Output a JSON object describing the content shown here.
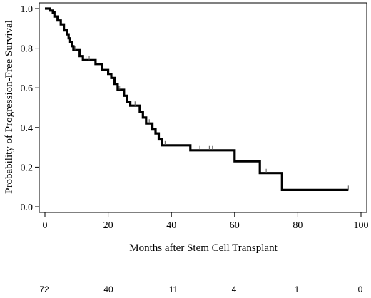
{
  "chart_data": {
    "type": "line",
    "subtype": "kaplan-meier",
    "xlabel": "Months after Stem Cell Transplant",
    "ylabel": "Probability of Progression-Free Survival",
    "xlim": [
      0,
      100
    ],
    "ylim": [
      0,
      1
    ],
    "x_ticks": [
      0,
      20,
      40,
      60,
      80,
      100
    ],
    "x_tick_labels": [
      "0",
      "20",
      "40",
      "60",
      "80",
      "100"
    ],
    "y_ticks": [
      0,
      0.2,
      0.4,
      0.6,
      0.8,
      1.0
    ],
    "y_tick_labels": [
      "0.0",
      "0.2",
      "0.4",
      "0.6",
      "0.8",
      "1.0"
    ],
    "grid": false,
    "series": [
      {
        "step_points": [
          [
            0,
            1.0
          ],
          [
            1.5,
            1.0
          ],
          [
            1.5,
            0.99
          ],
          [
            2.5,
            0.99
          ],
          [
            2.5,
            0.98
          ],
          [
            3,
            0.98
          ],
          [
            3,
            0.96
          ],
          [
            4,
            0.96
          ],
          [
            4,
            0.94
          ],
          [
            5,
            0.94
          ],
          [
            5,
            0.92
          ],
          [
            6,
            0.92
          ],
          [
            6,
            0.89
          ],
          [
            7,
            0.89
          ],
          [
            7,
            0.87
          ],
          [
            7.5,
            0.87
          ],
          [
            7.5,
            0.85
          ],
          [
            8,
            0.85
          ],
          [
            8,
            0.83
          ],
          [
            8.5,
            0.83
          ],
          [
            8.5,
            0.81
          ],
          [
            9,
            0.81
          ],
          [
            9,
            0.79
          ],
          [
            11,
            0.79
          ],
          [
            11,
            0.76
          ],
          [
            12,
            0.76
          ],
          [
            12,
            0.74
          ],
          [
            16,
            0.74
          ],
          [
            16,
            0.72
          ],
          [
            18,
            0.72
          ],
          [
            18,
            0.69
          ],
          [
            20,
            0.69
          ],
          [
            20,
            0.67
          ],
          [
            21,
            0.67
          ],
          [
            21,
            0.65
          ],
          [
            22,
            0.65
          ],
          [
            22,
            0.62
          ],
          [
            23,
            0.62
          ],
          [
            23,
            0.59
          ],
          [
            25,
            0.59
          ],
          [
            25,
            0.56
          ],
          [
            26,
            0.56
          ],
          [
            26,
            0.53
          ],
          [
            27,
            0.53
          ],
          [
            27,
            0.51
          ],
          [
            30,
            0.51
          ],
          [
            30,
            0.48
          ],
          [
            31,
            0.48
          ],
          [
            31,
            0.45
          ],
          [
            32,
            0.45
          ],
          [
            32,
            0.42
          ],
          [
            34,
            0.42
          ],
          [
            34,
            0.39
          ],
          [
            35,
            0.39
          ],
          [
            35,
            0.37
          ],
          [
            36,
            0.37
          ],
          [
            36,
            0.34
          ],
          [
            37,
            0.34
          ],
          [
            37,
            0.31
          ],
          [
            46,
            0.31
          ],
          [
            46,
            0.285
          ],
          [
            60,
            0.285
          ],
          [
            60,
            0.23
          ],
          [
            68,
            0.23
          ],
          [
            68,
            0.17
          ],
          [
            75,
            0.17
          ],
          [
            75,
            0.085
          ],
          [
            96,
            0.085
          ]
        ],
        "censor_marks": [
          [
            9.5,
            0.79
          ],
          [
            13,
            0.74
          ],
          [
            14,
            0.74
          ],
          [
            23.5,
            0.59
          ],
          [
            24,
            0.59
          ],
          [
            28.5,
            0.51
          ],
          [
            33,
            0.42
          ],
          [
            38,
            0.31
          ],
          [
            49,
            0.285
          ],
          [
            52,
            0.285
          ],
          [
            53,
            0.285
          ],
          [
            57,
            0.285
          ],
          [
            70,
            0.17
          ],
          [
            96,
            0.085
          ]
        ]
      }
    ],
    "numbers_at_risk": [
      {
        "x": 0,
        "label": "72"
      },
      {
        "x": 20,
        "label": "40"
      },
      {
        "x": 40,
        "label": "11"
      },
      {
        "x": 60,
        "label": "4"
      },
      {
        "x": 80,
        "label": "1"
      },
      {
        "x": 100,
        "label": "0"
      }
    ]
  }
}
